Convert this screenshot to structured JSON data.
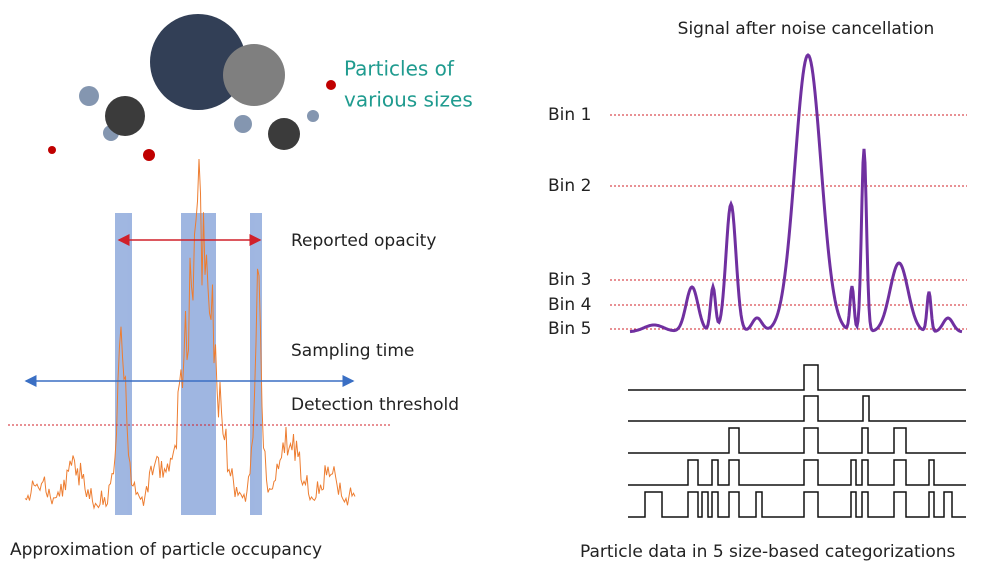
{
  "left_panel": {
    "particles_label": [
      "Particles of",
      "various sizes"
    ],
    "annotations": {
      "reported_opacity": "Reported opacity",
      "sampling_time": "Sampling time",
      "detection_threshold": "Detection threshold"
    },
    "caption": "Approximation of particle occupancy"
  },
  "right_panel": {
    "title": "Signal after noise cancellation",
    "bins": [
      "Bin 1",
      "Bin 2",
      "Bin 3",
      "Bin 4",
      "Bin 5"
    ],
    "caption": "Particle data in 5 size-based categorizations"
  }
}
